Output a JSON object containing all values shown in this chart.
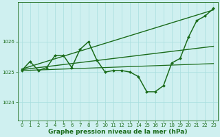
{
  "xlabel": "Graphe pression niveau de la mer (hPa)",
  "background_color": "#cff0f0",
  "line_color": "#1a6b1a",
  "grid_color": "#a8dede",
  "xlim": [
    -0.5,
    23.5
  ],
  "ylim": [
    1023.4,
    1027.3
  ],
  "yticks": [
    1024,
    1025,
    1026
  ],
  "xticks": [
    0,
    1,
    2,
    3,
    4,
    5,
    6,
    7,
    8,
    9,
    10,
    11,
    12,
    13,
    14,
    15,
    16,
    17,
    18,
    19,
    20,
    21,
    22,
    23
  ],
  "series": [
    {
      "x": [
        0,
        1,
        2,
        3,
        4,
        5,
        6,
        7,
        8,
        9,
        10,
        11,
        12,
        13,
        14,
        15,
        16,
        17,
        18,
        19,
        20,
        21,
        22,
        23
      ],
      "y": [
        1025.05,
        1025.35,
        1025.05,
        1025.15,
        1025.55,
        1025.55,
        1025.15,
        1025.75,
        1026.0,
        1025.4,
        1025.0,
        1025.05,
        1025.05,
        1025.0,
        1024.85,
        1024.35,
        1024.35,
        1024.55,
        1025.3,
        1025.45,
        1026.15,
        1026.7,
        1026.85,
        1027.1
      ],
      "marker": "D",
      "markersize": 2.0,
      "linewidth": 1.1,
      "zorder": 3
    },
    {
      "x": [
        0,
        23
      ],
      "y": [
        1025.1,
        1027.05
      ],
      "marker": null,
      "markersize": 0,
      "linewidth": 1.0,
      "zorder": 2
    },
    {
      "x": [
        0,
        23
      ],
      "y": [
        1025.08,
        1025.85
      ],
      "marker": null,
      "markersize": 0,
      "linewidth": 1.0,
      "zorder": 2
    },
    {
      "x": [
        0,
        23
      ],
      "y": [
        1025.05,
        1025.28
      ],
      "marker": null,
      "markersize": 0,
      "linewidth": 0.9,
      "zorder": 2
    }
  ],
  "tick_fontsize": 5.0,
  "label_fontsize": 6.5,
  "label_fontweight": "bold",
  "spine_color": "#1a6b1a",
  "spine_linewidth": 0.6
}
